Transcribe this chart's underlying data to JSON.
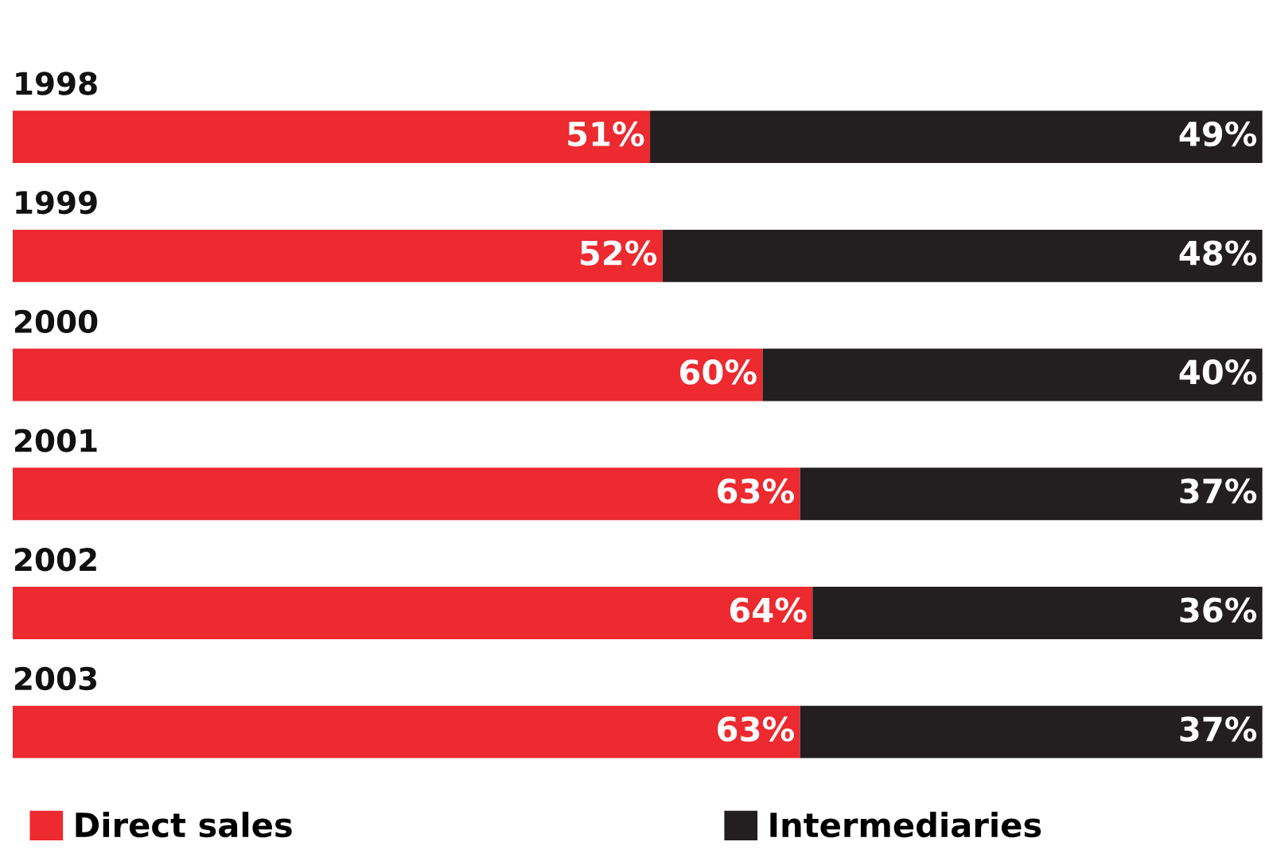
{
  "chart_data": {
    "type": "bar",
    "orientation": "horizontal",
    "stacked": true,
    "categories": [
      "1998",
      "1999",
      "2000",
      "2001",
      "2002",
      "2003"
    ],
    "series": [
      {
        "name": "Direct sales",
        "color": "#ec2a2f",
        "values": [
          51,
          52,
          60,
          63,
          64,
          63
        ],
        "value_labels": [
          "51%",
          "52%",
          "60%",
          "63%",
          "64%",
          "63%"
        ]
      },
      {
        "name": "Intermediaries",
        "color": "#231f20",
        "values": [
          49,
          48,
          40,
          37,
          36,
          37
        ],
        "value_labels": [
          "49%",
          "48%",
          "40%",
          "37%",
          "36%",
          "37%"
        ]
      }
    ],
    "xlim": [
      0,
      100
    ],
    "tick_labels": "y",
    "legend": "bottom"
  }
}
